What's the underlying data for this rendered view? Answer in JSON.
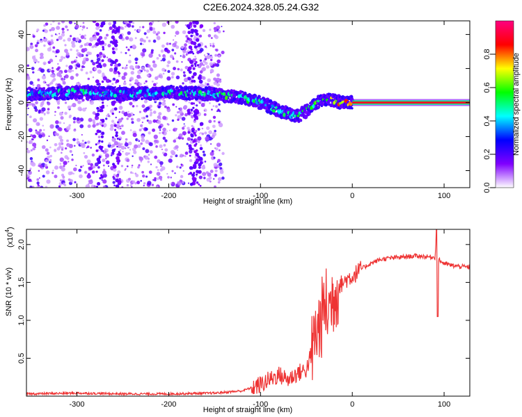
{
  "title": "C2E6.2024.328.05.24.G32",
  "chart_data": [
    {
      "type": "heatmap",
      "xlabel": "Height of straight line (km)",
      "ylabel": "Frequency (Hz)",
      "xlim": [
        -355,
        128
      ],
      "ylim": [
        -50,
        48
      ],
      "x_ticks": [
        -300,
        -200,
        -100,
        0,
        100
      ],
      "y_ticks": [
        -40,
        -20,
        0,
        20,
        40
      ],
      "colorbar": {
        "label": "Normalized spectral amplitude",
        "range": [
          0,
          1
        ],
        "ticks": [
          "0.0",
          "0.2",
          "0.4",
          "0.6",
          "0.8"
        ],
        "colors": [
          "#ffffff",
          "#8000ff",
          "#0000ff",
          "#00ffff",
          "#00ff00",
          "#ffff00",
          "#ff0000",
          "#ff0080"
        ]
      },
      "ridge": {
        "x": [
          -355,
          -300,
          -250,
          -200,
          -150,
          -140,
          -120,
          -100,
          -80,
          -60,
          -50,
          -40,
          -30,
          -20,
          -10,
          0,
          50,
          128
        ],
        "y": [
          5,
          6,
          5,
          6,
          5,
          4,
          3,
          0,
          -5,
          -8,
          -5,
          0,
          2,
          1,
          0,
          0,
          0,
          0
        ],
        "amplitude": [
          0.4,
          0.45,
          0.4,
          0.45,
          0.45,
          0.6,
          0.5,
          0.45,
          0.45,
          0.5,
          0.5,
          0.55,
          0.6,
          0.7,
          0.75,
          0.85,
          0.9,
          0.9
        ]
      }
    },
    {
      "type": "line",
      "xlabel": "Height of straight line (km)",
      "ylabel": "SNR (10 * v/v)",
      "y_multiplier": "(x10",
      "y_multiplier_exp": "4",
      "y_multiplier_close": ")",
      "xlim": [
        -355,
        128
      ],
      "ylim": [
        0,
        2.2
      ],
      "x_ticks": [
        -300,
        -200,
        -100,
        0,
        100
      ],
      "y_ticks": [
        0.5,
        1.0,
        1.5,
        2.0
      ],
      "color": "#ee3333",
      "series": [
        {
          "x": [
            -355,
            -300,
            -250,
            -200,
            -150,
            -120,
            -100,
            -90,
            -80,
            -70,
            -60,
            -50,
            -45,
            -40,
            -35,
            -30,
            -25,
            -20,
            -15,
            -10,
            -5,
            0,
            10,
            20,
            30,
            40,
            50,
            60,
            70,
            80,
            90,
            92,
            94,
            100,
            110,
            128
          ],
          "y": [
            0.03,
            0.04,
            0.03,
            0.03,
            0.04,
            0.07,
            0.15,
            0.22,
            0.28,
            0.22,
            0.3,
            0.35,
            0.55,
            0.8,
            0.95,
            1.2,
            1.15,
            1.35,
            1.45,
            1.5,
            1.55,
            1.58,
            1.68,
            1.75,
            1.8,
            1.82,
            1.83,
            1.84,
            1.85,
            1.84,
            1.83,
            2.15,
            1.8,
            1.75,
            1.72,
            1.7
          ]
        }
      ]
    }
  ]
}
